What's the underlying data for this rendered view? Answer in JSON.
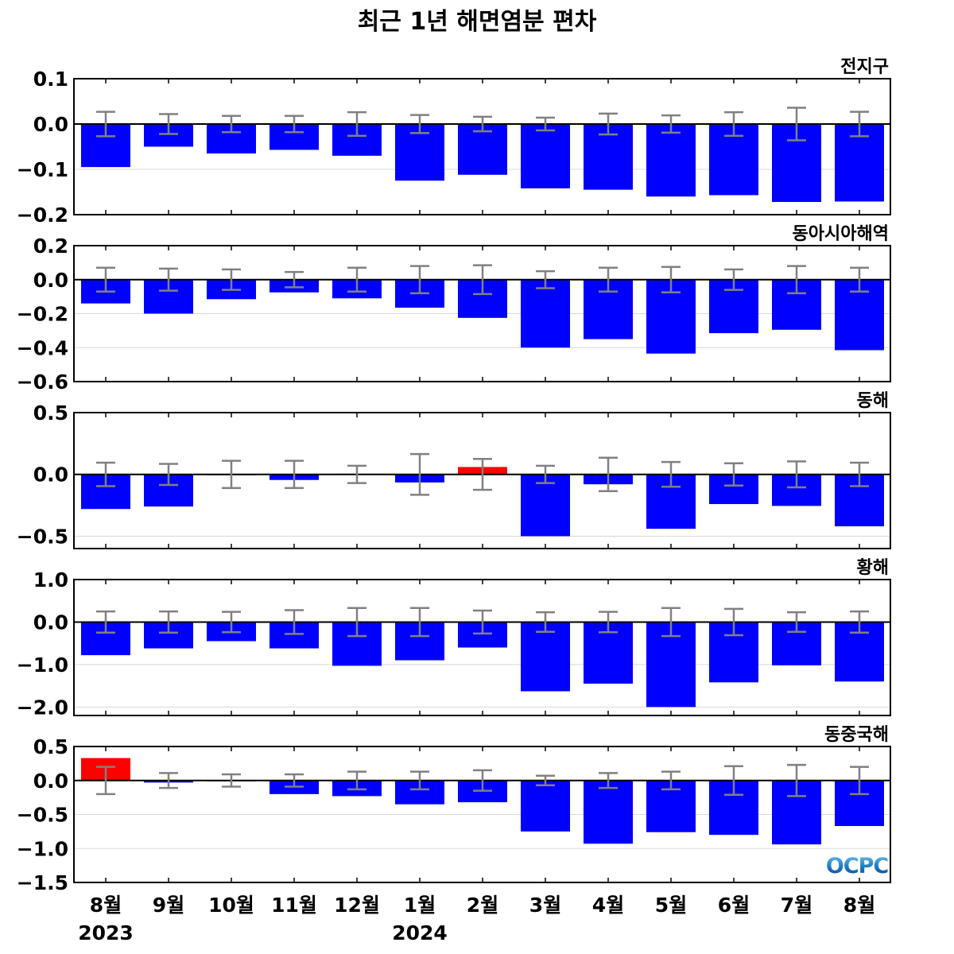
{
  "title": "최근 1년 해면염분 편차",
  "logo_text": "OCPC",
  "colors": {
    "negative": "#0000ff",
    "positive": "#ff0000",
    "error_bar": "#808080",
    "zero_line": "#000000",
    "grid": "#d8d8d8"
  },
  "x_tick_labels": [
    "8월",
    "9월",
    "10월",
    "11월",
    "12월",
    "1월",
    "2월",
    "3월",
    "4월",
    "5월",
    "6월",
    "7월",
    "8월"
  ],
  "year_labels": [
    {
      "text": "2023",
      "index": 0
    },
    {
      "text": "2024",
      "index": 5
    }
  ],
  "chart_data": [
    {
      "type": "bar",
      "title": "전지구",
      "categories": [
        "2023-08",
        "2023-09",
        "2023-10",
        "2023-11",
        "2023-12",
        "2024-01",
        "2024-02",
        "2024-03",
        "2024-04",
        "2024-05",
        "2024-06",
        "2024-07",
        "2024-08"
      ],
      "values": [
        -0.095,
        -0.05,
        -0.065,
        -0.057,
        -0.07,
        -0.125,
        -0.112,
        -0.142,
        -0.145,
        -0.16,
        -0.157,
        -0.172,
        -0.171
      ],
      "errors": [
        0.027,
        0.022,
        0.018,
        0.018,
        0.026,
        0.02,
        0.016,
        0.014,
        0.023,
        0.019,
        0.026,
        0.036,
        0.027
      ],
      "ylim": [
        -0.2,
        0.1
      ],
      "yticks": [
        0.1,
        0.0,
        -0.1,
        -0.2
      ],
      "ytick_labels": [
        "0.1",
        "0.0",
        "−0.1",
        "−0.2"
      ]
    },
    {
      "type": "bar",
      "title": "동아시아해역",
      "categories": [
        "2023-08",
        "2023-09",
        "2023-10",
        "2023-11",
        "2023-12",
        "2024-01",
        "2024-02",
        "2024-03",
        "2024-04",
        "2024-05",
        "2024-06",
        "2024-07",
        "2024-08"
      ],
      "values": [
        -0.14,
        -0.2,
        -0.115,
        -0.075,
        -0.11,
        -0.165,
        -0.225,
        -0.4,
        -0.35,
        -0.435,
        -0.315,
        -0.295,
        -0.415
      ],
      "errors": [
        0.07,
        0.065,
        0.06,
        0.045,
        0.07,
        0.08,
        0.085,
        0.05,
        0.07,
        0.075,
        0.06,
        0.08,
        0.07
      ],
      "ylim": [
        -0.6,
        0.2
      ],
      "yticks": [
        0.2,
        0.0,
        -0.2,
        -0.4,
        -0.6
      ],
      "ytick_labels": [
        "0.2",
        "0.0",
        "−0.2",
        "−0.4",
        "−0.6"
      ]
    },
    {
      "type": "bar",
      "title": "동해",
      "categories": [
        "2023-08",
        "2023-09",
        "2023-10",
        "2023-11",
        "2023-12",
        "2024-01",
        "2024-02",
        "2024-03",
        "2024-04",
        "2024-05",
        "2024-06",
        "2024-07",
        "2024-08"
      ],
      "values": [
        -0.28,
        -0.26,
        -0.005,
        -0.045,
        0.005,
        -0.065,
        0.06,
        -0.5,
        -0.08,
        -0.44,
        -0.24,
        -0.255,
        -0.42
      ],
      "errors": [
        0.095,
        0.085,
        0.11,
        0.11,
        0.07,
        0.165,
        0.125,
        0.07,
        0.135,
        0.1,
        0.09,
        0.105,
        0.095
      ],
      "ylim": [
        -0.6,
        0.5
      ],
      "yticks": [
        0.5,
        0.0,
        -0.5
      ],
      "ytick_labels": [
        "0.5",
        "0.0",
        "−0.5"
      ]
    },
    {
      "type": "bar",
      "title": "황해",
      "categories": [
        "2023-08",
        "2023-09",
        "2023-10",
        "2023-11",
        "2023-12",
        "2024-01",
        "2024-02",
        "2024-03",
        "2024-04",
        "2024-05",
        "2024-06",
        "2024-07",
        "2024-08"
      ],
      "values": [
        -0.78,
        -0.62,
        -0.45,
        -0.62,
        -1.03,
        -0.9,
        -0.6,
        -1.63,
        -1.45,
        -2.0,
        -1.42,
        -1.02,
        -1.4
      ],
      "errors": [
        0.25,
        0.25,
        0.24,
        0.28,
        0.33,
        0.33,
        0.27,
        0.23,
        0.24,
        0.33,
        0.31,
        0.23,
        0.25
      ],
      "ylim": [
        -2.2,
        1.0
      ],
      "yticks": [
        1.0,
        0.0,
        -1.0,
        -2.0
      ],
      "ytick_labels": [
        "1.0",
        "0.0",
        "−1.0",
        "−2.0"
      ]
    },
    {
      "type": "bar",
      "title": "동중국해",
      "categories": [
        "2023-08",
        "2023-09",
        "2023-10",
        "2023-11",
        "2023-12",
        "2024-01",
        "2024-02",
        "2024-03",
        "2024-04",
        "2024-05",
        "2024-06",
        "2024-07",
        "2024-08"
      ],
      "values": [
        0.33,
        -0.03,
        -0.01,
        -0.2,
        -0.23,
        -0.35,
        -0.32,
        -0.75,
        -0.93,
        -0.76,
        -0.8,
        -0.94,
        -0.67
      ],
      "errors": [
        0.2,
        0.11,
        0.09,
        0.09,
        0.13,
        0.13,
        0.15,
        0.07,
        0.11,
        0.13,
        0.21,
        0.23,
        0.2
      ],
      "ylim": [
        -1.5,
        0.5
      ],
      "yticks": [
        0.5,
        0.0,
        -0.5,
        -1.0,
        -1.5
      ],
      "ytick_labels": [
        "0.5",
        "0.0",
        "−0.5",
        "−1.0",
        "−1.5"
      ]
    }
  ]
}
